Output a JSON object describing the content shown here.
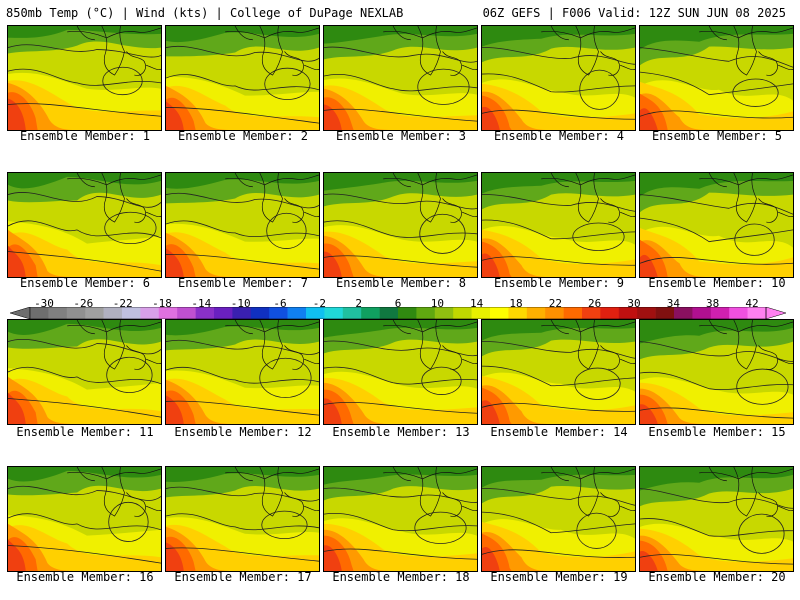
{
  "header": {
    "left": "850mb Temp (°C) | Wind (kts) | College of DuPage NEXLAB",
    "right": "06Z GEFS | F006 Valid: 12Z SUN JUN 08 2025"
  },
  "members": [
    "Ensemble Member: 1",
    "Ensemble Member: 2",
    "Ensemble Member: 3",
    "Ensemble Member: 4",
    "Ensemble Member: 5",
    "Ensemble Member: 6",
    "Ensemble Member: 7",
    "Ensemble Member: 8",
    "Ensemble Member: 9",
    "Ensemble Member: 10",
    "Ensemble Member: 11",
    "Ensemble Member: 12",
    "Ensemble Member: 13",
    "Ensemble Member: 14",
    "Ensemble Member: 15",
    "Ensemble Member: 16",
    "Ensemble Member: 17",
    "Ensemble Member: 18",
    "Ensemble Member: 19",
    "Ensemble Member: 20"
  ],
  "colorbar": {
    "tick_labels": [
      "-30",
      "-26",
      "-22",
      "-18",
      "-14",
      "-10",
      "-6",
      "-2",
      "2",
      "6",
      "10",
      "14",
      "18",
      "22",
      "26",
      "30",
      "34",
      "38",
      "42"
    ],
    "colors": [
      "#6e6e6e",
      "#808080",
      "#909090",
      "#a0a0a0",
      "#b0b0c0",
      "#c0c0e0",
      "#d8a0e8",
      "#e070e0",
      "#c050d0",
      "#8a30c8",
      "#6a20c0",
      "#3a20b0",
      "#1030c0",
      "#1050e0",
      "#1080f0",
      "#10c0f0",
      "#20d8d8",
      "#20c0a0",
      "#10a060",
      "#107840",
      "#308a10",
      "#60a810",
      "#90c010",
      "#c0d800",
      "#e8f000",
      "#ffff00",
      "#ffd800",
      "#ffb000",
      "#ff9000",
      "#ff6a00",
      "#f04010",
      "#e02010",
      "#c01010",
      "#a01010",
      "#801010",
      "#8a1060",
      "#b01090",
      "#d020b0",
      "#f050e0",
      "#ff80f0"
    ]
  },
  "map_colors": {
    "north_green": "#2e8a10",
    "mid_green": "#60a81a",
    "light_green": "#98c416",
    "yellow_green": "#c8d800",
    "yellow": "#f0f000",
    "gold": "#ffd000",
    "orange": "#ff9a00",
    "dark_orange": "#ff6a00",
    "red": "#f04010"
  }
}
